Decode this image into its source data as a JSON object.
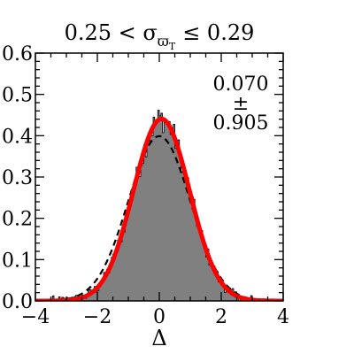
{
  "chart_data": {
    "type": "histogram",
    "title_lhs": "0.25 < σ",
    "title_sub_main": "ϖ",
    "title_sub_sub": "T",
    "title_rhs": "≤ 0.29",
    "xlabel": "Δ",
    "ylabel": "",
    "xlim": [
      -4,
      4
    ],
    "ylim": [
      0.0,
      0.6
    ],
    "xticks": [
      -4,
      -2,
      0,
      2,
      4
    ],
    "xtick_labels": [
      "−4",
      "−2",
      "0",
      "2",
      "4"
    ],
    "yticks": [
      0.0,
      0.1,
      0.2,
      0.3,
      0.4,
      0.5,
      0.6
    ],
    "ytick_labels": [
      "0.0",
      "0.1",
      "0.2",
      "0.3",
      "0.4",
      "0.5",
      "0.6"
    ],
    "annotation": {
      "mean": "0.070",
      "pm": "±",
      "sigma": "0.905"
    },
    "fit_mean": 0.07,
    "fit_sigma": 0.905,
    "reference_mean": 0.0,
    "reference_sigma": 1.0,
    "colors": {
      "histogram_fill": "#808080",
      "histogram_edge": "#000000",
      "fit_line": "#ff0000",
      "reference_line": "#000000"
    },
    "series": [
      {
        "name": "",
        "style": "histogram"
      },
      {
        "name": "",
        "style": "fit"
      },
      {
        "name": "",
        "style": "reference"
      }
    ]
  }
}
